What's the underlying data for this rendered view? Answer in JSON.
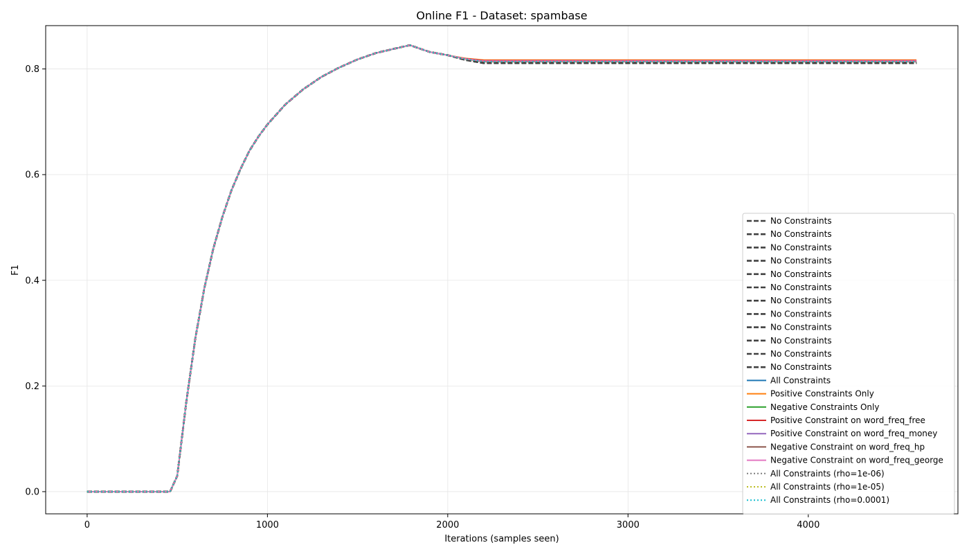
{
  "chart_data": {
    "type": "line",
    "title": "Online F1 - Dataset: spambase",
    "xlabel": "Iterations (samples seen)",
    "ylabel": "F1",
    "xlim": [
      -230,
      4830
    ],
    "ylim": [
      -0.042,
      0.882
    ],
    "xticks": [
      0,
      1000,
      2000,
      3000,
      4000
    ],
    "yticks": [
      0.0,
      0.2,
      0.4,
      0.6,
      0.8
    ],
    "xtick_labels": [
      "0",
      "1000",
      "2000",
      "3000",
      "4000"
    ],
    "ytick_labels": [
      "0.0",
      "0.2",
      "0.4",
      "0.6",
      "0.8"
    ],
    "grid": true,
    "legend_position": "lower right",
    "base_curve": {
      "x": [
        0,
        100,
        200,
        300,
        400,
        460,
        500,
        550,
        600,
        650,
        700,
        750,
        800,
        850,
        900,
        950,
        1000,
        1100,
        1200,
        1300,
        1400,
        1500,
        1600,
        1700,
        1790,
        1850,
        1900,
        2000,
        2100,
        2200,
        2300,
        2400,
        2600,
        3000,
        3500,
        4000,
        4600
      ],
      "y": [
        0.0,
        0.0,
        0.0,
        0.0,
        0.0,
        0.0,
        0.03,
        0.17,
        0.29,
        0.385,
        0.46,
        0.52,
        0.57,
        0.61,
        0.645,
        0.672,
        0.695,
        0.733,
        0.762,
        0.785,
        0.803,
        0.818,
        0.83,
        0.838,
        0.845,
        0.838,
        0.832,
        0.826,
        0.823,
        0.822,
        0.82,
        0.82,
        0.82,
        0.82,
        0.82,
        0.82,
        0.82
      ]
    },
    "series": [
      {
        "name": "No Constraints",
        "color": "#404040",
        "dash": "dashed",
        "final": 0.811
      },
      {
        "name": "No Constraints",
        "color": "#404040",
        "dash": "dashed",
        "final": 0.811
      },
      {
        "name": "No Constraints",
        "color": "#404040",
        "dash": "dashed",
        "final": 0.811
      },
      {
        "name": "No Constraints",
        "color": "#404040",
        "dash": "dashed",
        "final": 0.811
      },
      {
        "name": "No Constraints",
        "color": "#404040",
        "dash": "dashed",
        "final": 0.811
      },
      {
        "name": "No Constraints",
        "color": "#404040",
        "dash": "dashed",
        "final": 0.811
      },
      {
        "name": "No Constraints",
        "color": "#404040",
        "dash": "dashed",
        "final": 0.811
      },
      {
        "name": "No Constraints",
        "color": "#404040",
        "dash": "dashed",
        "final": 0.811
      },
      {
        "name": "No Constraints",
        "color": "#404040",
        "dash": "dashed",
        "final": 0.811
      },
      {
        "name": "No Constraints",
        "color": "#404040",
        "dash": "dashed",
        "final": 0.811
      },
      {
        "name": "No Constraints",
        "color": "#404040",
        "dash": "dashed",
        "final": 0.811
      },
      {
        "name": "No Constraints",
        "color": "#404040",
        "dash": "dashed",
        "final": 0.811
      },
      {
        "name": "All Constraints",
        "color": "#1f77b4",
        "dash": "solid",
        "final": 0.814
      },
      {
        "name": "Positive Constraints Only",
        "color": "#ff7f0e",
        "dash": "solid",
        "final": 0.817
      },
      {
        "name": "Negative Constraints Only",
        "color": "#2ca02c",
        "dash": "solid",
        "final": 0.814
      },
      {
        "name": "Positive Constraint on word_freq_free",
        "color": "#d62728",
        "dash": "solid",
        "final": 0.816
      },
      {
        "name": "Positive Constraint on word_freq_money",
        "color": "#9467bd",
        "dash": "solid",
        "final": 0.815
      },
      {
        "name": "Negative Constraint on word_freq_hp",
        "color": "#8c564b",
        "dash": "solid",
        "final": 0.814
      },
      {
        "name": "Negative Constraint on word_freq_george",
        "color": "#e377c2",
        "dash": "solid",
        "final": 0.815
      },
      {
        "name": "All Constraints (rho=1e-06)",
        "color": "#7f7f7f",
        "dash": "dotted",
        "final": 0.814
      },
      {
        "name": "All Constraints (rho=1e-05)",
        "color": "#bcbd22",
        "dash": "dotted",
        "final": 0.814
      },
      {
        "name": "All Constraints (rho=0.0001)",
        "color": "#17becf",
        "dash": "dotted",
        "final": 0.814
      }
    ]
  }
}
